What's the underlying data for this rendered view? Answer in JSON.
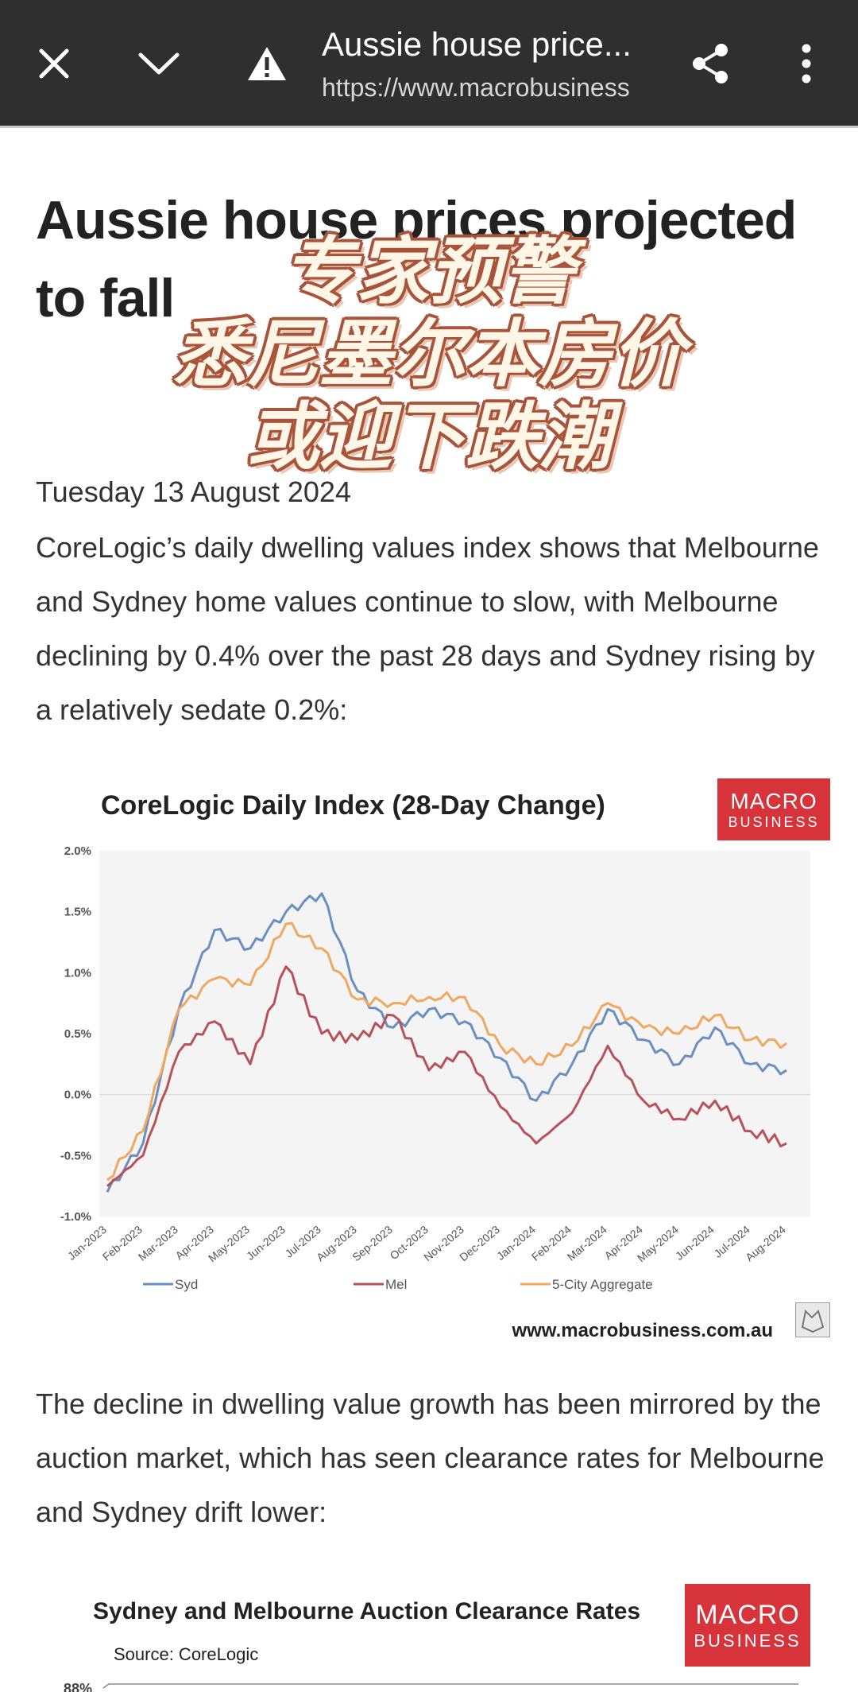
{
  "browser": {
    "close_icon": "close-icon",
    "collapse_icon": "chevron-down-icon",
    "warning_icon": "warning-icon",
    "title": "Aussie house price...",
    "url": "https://www.macrobusiness",
    "share_icon": "share-icon",
    "menu_icon": "more-vert-icon"
  },
  "article": {
    "headline": "Aussie house prices projected to fall",
    "overlay_lines": [
      "专家预警",
      "悉尼墨尔本房价",
      "或迎下跌潮"
    ],
    "date": "Tuesday 13 August 2024",
    "paragraph1": "CoreLogic’s daily dwelling values index shows that Melbourne and Sydney home values continue to slow, with Melbourne declining by 0.4% over the past 28 days and Sydney rising by a relatively sedate 0.2%:",
    "paragraph2": "The decline in dwelling value growth has been mirrored by the auction market, which has seen clearance rates for Melbourne and Sydney drift lower:"
  },
  "logo": {
    "line1": "MACRO",
    "line2": "BUSINESS"
  },
  "chart_data": [
    {
      "type": "line",
      "title": "CoreLogic Daily Index (28-Day Change)",
      "site": "www.macrobusiness.com.au",
      "x": [
        "Jan-2023",
        "Feb-2023",
        "Mar-2023",
        "Apr-2023",
        "May-2023",
        "Jun-2023",
        "Jul-2023",
        "Aug-2023",
        "Sep-2023",
        "Oct-2023",
        "Nov-2023",
        "Dec-2023",
        "Jan-2024",
        "Feb-2024",
        "Mar-2024",
        "Apr-2024",
        "May-2024",
        "Jun-2024",
        "Jul-2024",
        "Aug-2024"
      ],
      "ylim": [
        -1.0,
        2.0
      ],
      "yticks": [
        "2.0%",
        "1.5%",
        "1.0%",
        "0.5%",
        "0.0%",
        "-0.5%",
        "-1.0%"
      ],
      "grid": true,
      "legend": "bottom",
      "series": [
        {
          "name": "Syd",
          "color": "#6b8fc2",
          "values": [
            -0.8,
            -0.4,
            0.7,
            1.35,
            1.2,
            1.5,
            1.65,
            0.85,
            0.55,
            0.7,
            0.6,
            0.3,
            -0.05,
            0.25,
            0.7,
            0.45,
            0.25,
            0.55,
            0.25,
            0.2
          ]
        },
        {
          "name": "Mel",
          "color": "#b8525a",
          "values": [
            -0.75,
            -0.5,
            0.35,
            0.6,
            0.25,
            1.05,
            0.5,
            0.45,
            0.65,
            0.2,
            0.35,
            -0.1,
            -0.4,
            -0.15,
            0.4,
            -0.05,
            -0.2,
            -0.05,
            -0.3,
            -0.4
          ]
        },
        {
          "name": "5-City Aggregate",
          "color": "#f0a860",
          "values": [
            -0.7,
            -0.3,
            0.7,
            0.95,
            0.9,
            1.4,
            1.2,
            0.78,
            0.75,
            0.8,
            0.8,
            0.4,
            0.25,
            0.4,
            0.75,
            0.55,
            0.5,
            0.65,
            0.45,
            0.42
          ]
        }
      ]
    },
    {
      "type": "line",
      "title": "Sydney and Melbourne Auction Clearance Rates",
      "source": "Source: CoreLogic",
      "yticks": [
        "88%"
      ]
    }
  ]
}
